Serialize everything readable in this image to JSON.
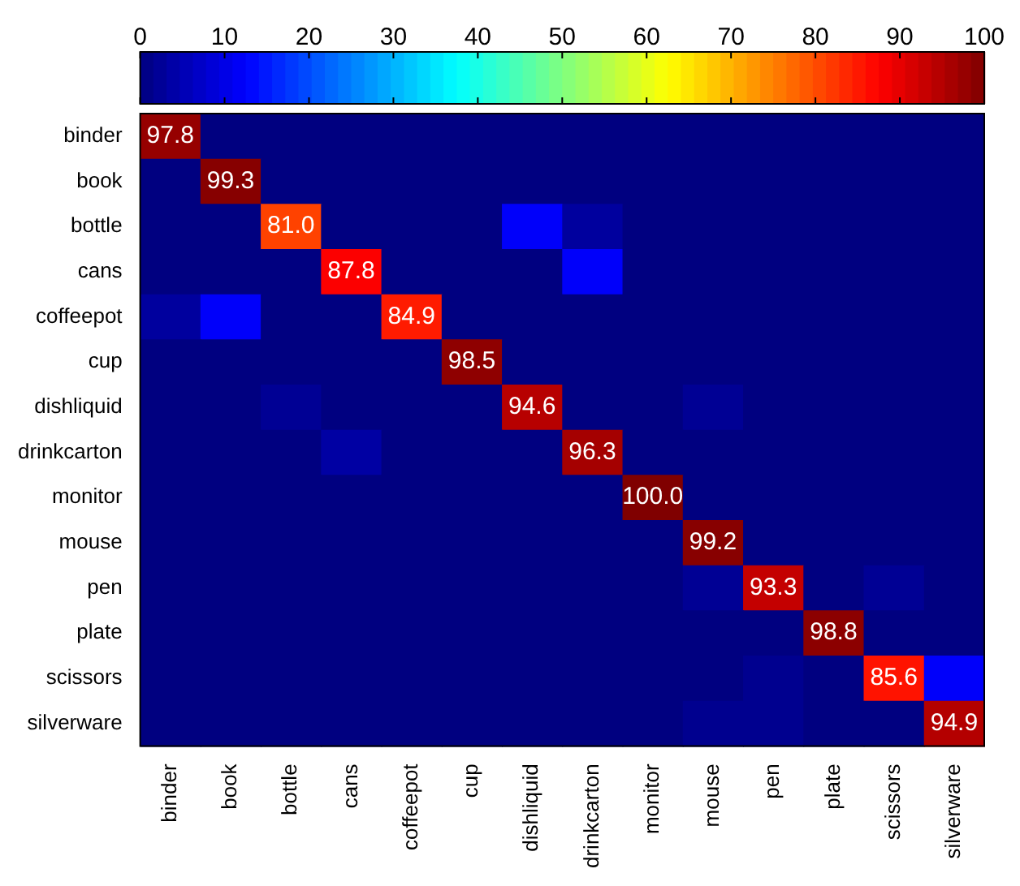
{
  "chart_data": {
    "type": "heatmap",
    "categories": [
      "binder",
      "book",
      "bottle",
      "cans",
      "coffeepot",
      "cup",
      "dishliquid",
      "drinkcarton",
      "monitor",
      "mouse",
      "pen",
      "plate",
      "scissors",
      "silverware"
    ],
    "y_categories": [
      "binder",
      "book",
      "bottle",
      "cans",
      "coffeepot",
      "cup",
      "dishliquid",
      "drinkcarton",
      "monitor",
      "mouse",
      "pen",
      "plate",
      "scissors",
      "silverware"
    ],
    "cells": [
      [
        97.8,
        0,
        0,
        0,
        0,
        0,
        0,
        0,
        0,
        0,
        0,
        0,
        0,
        0
      ],
      [
        0,
        99.3,
        0,
        0,
        0,
        0,
        0,
        0,
        0,
        0,
        0,
        0,
        0,
        0
      ],
      [
        0,
        0,
        81.0,
        0,
        0,
        0,
        12,
        3,
        0,
        0,
        0,
        0,
        0,
        0
      ],
      [
        0,
        0,
        0,
        87.8,
        0,
        0,
        0,
        12,
        0,
        0,
        0,
        0,
        0,
        0
      ],
      [
        3,
        12,
        0,
        0,
        84.9,
        0,
        0,
        0,
        0,
        0,
        0,
        0,
        0,
        0
      ],
      [
        0,
        0,
        0,
        0,
        0,
        98.5,
        0,
        0,
        0,
        0,
        0,
        0,
        0,
        0
      ],
      [
        0,
        0,
        2,
        0,
        0,
        0,
        94.6,
        0,
        0,
        2,
        0,
        0,
        0,
        0
      ],
      [
        0,
        0,
        0,
        3.5,
        0,
        0,
        0,
        96.3,
        0,
        0,
        0,
        0,
        0,
        0
      ],
      [
        0,
        0,
        0,
        0,
        0,
        0,
        0,
        0,
        100.0,
        0,
        0,
        0,
        0,
        0
      ],
      [
        0,
        0,
        0,
        0,
        0,
        0,
        0,
        0,
        0,
        99.2,
        0,
        0,
        0,
        0
      ],
      [
        0,
        0,
        0,
        0,
        0,
        0,
        0,
        0,
        0,
        2,
        93.3,
        0,
        2,
        0
      ],
      [
        0,
        0,
        0,
        0,
        0,
        0,
        0,
        0,
        0,
        0,
        0,
        98.8,
        0,
        0
      ],
      [
        0,
        0,
        0,
        0,
        0,
        0,
        0,
        0,
        0,
        0,
        1.5,
        0,
        85.6,
        12
      ],
      [
        0,
        0,
        0,
        0,
        0,
        0,
        0,
        0,
        0,
        1.5,
        1.5,
        0,
        0,
        94.9
      ]
    ],
    "cell_labels": [
      [
        "97.8",
        null,
        null,
        null,
        null,
        null,
        null,
        null,
        null,
        null,
        null,
        null,
        null,
        null
      ],
      [
        null,
        "99.3",
        null,
        null,
        null,
        null,
        null,
        null,
        null,
        null,
        null,
        null,
        null,
        null
      ],
      [
        null,
        null,
        "81.0",
        null,
        null,
        null,
        null,
        null,
        null,
        null,
        null,
        null,
        null,
        null
      ],
      [
        null,
        null,
        null,
        "87.8",
        null,
        null,
        null,
        null,
        null,
        null,
        null,
        null,
        null,
        null
      ],
      [
        null,
        null,
        null,
        null,
        "84.9",
        null,
        null,
        null,
        null,
        null,
        null,
        null,
        null,
        null
      ],
      [
        null,
        null,
        null,
        null,
        null,
        "98.5",
        null,
        null,
        null,
        null,
        null,
        null,
        null,
        null
      ],
      [
        null,
        null,
        null,
        null,
        null,
        null,
        "94.6",
        null,
        null,
        null,
        null,
        null,
        null,
        null
      ],
      [
        null,
        null,
        null,
        null,
        null,
        null,
        null,
        "96.3",
        null,
        null,
        null,
        null,
        null,
        null
      ],
      [
        null,
        null,
        null,
        null,
        null,
        null,
        null,
        null,
        "100.0",
        null,
        null,
        null,
        null,
        null
      ],
      [
        null,
        null,
        null,
        null,
        null,
        null,
        null,
        null,
        null,
        "99.2",
        null,
        null,
        null,
        null
      ],
      [
        null,
        null,
        null,
        null,
        null,
        null,
        null,
        null,
        null,
        null,
        "93.3",
        null,
        null,
        null
      ],
      [
        null,
        null,
        null,
        null,
        null,
        null,
        null,
        null,
        null,
        null,
        null,
        "98.8",
        null,
        null
      ],
      [
        null,
        null,
        null,
        null,
        null,
        null,
        null,
        null,
        null,
        null,
        null,
        null,
        "85.6",
        null
      ],
      [
        null,
        null,
        null,
        null,
        null,
        null,
        null,
        null,
        null,
        null,
        null,
        null,
        null,
        "94.9"
      ]
    ],
    "clim": [
      0,
      100
    ],
    "cticks": [
      0,
      10,
      20,
      30,
      40,
      50,
      60,
      70,
      80,
      90,
      100
    ]
  }
}
